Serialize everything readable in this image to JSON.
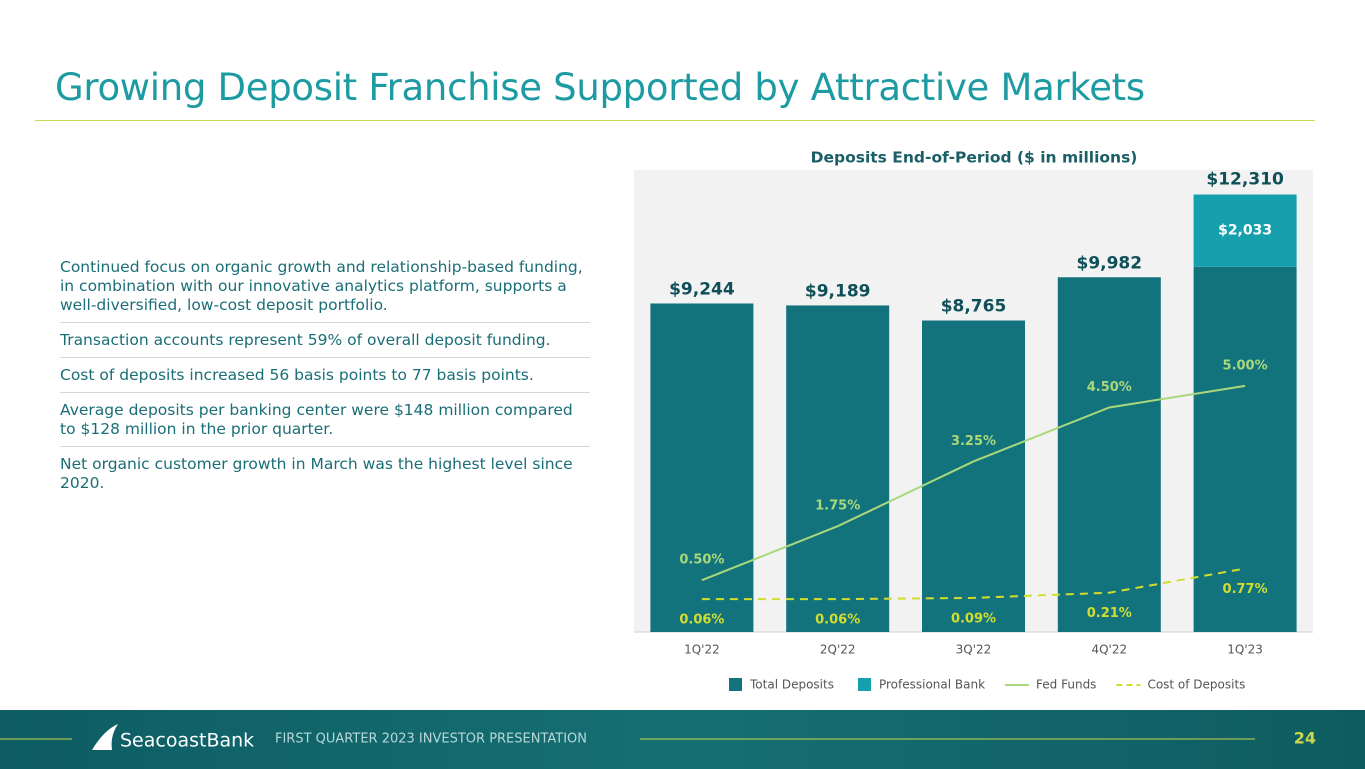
{
  "header": {
    "title": "Growing Deposit Franchise Supported by Attractive Markets"
  },
  "bullets": [
    "Continued focus on organic growth and relationship-based funding, in combination with our innovative analytics platform, supports a well-diversified, low-cost deposit portfolio.",
    "Transaction accounts represent 59% of overall deposit funding.",
    "Cost of deposits increased 56 basis points to 77 basis points.",
    "Average deposits per banking center were $148 million compared to $128 million in the prior quarter.",
    "Net organic customer growth in March was the highest level since 2020."
  ],
  "chart_data": {
    "type": "bar_line",
    "title": "Deposits End-of-Period ($ in millions)",
    "categories": [
      "1Q'22",
      "2Q'22",
      "3Q'22",
      "4Q'22",
      "1Q'23"
    ],
    "ylim": [
      0,
      13000
    ],
    "y2lim": [
      -0.7,
      10
    ],
    "series": [
      {
        "name": "Total Deposits",
        "type": "bar",
        "color": "#13737d",
        "values": [
          9244,
          9189,
          8765,
          9982,
          10277
        ],
        "value_labels": [
          "$9,244",
          "$9,189",
          "$8,765",
          "$9,982",
          null
        ]
      },
      {
        "name": "Professional Bank",
        "type": "bar",
        "color": "#16a0ad",
        "values": [
          null,
          null,
          null,
          null,
          2033
        ],
        "value_labels": [
          null,
          null,
          null,
          null,
          "$2,033"
        ]
      },
      {
        "name": "Fed Funds",
        "type": "line",
        "axis": "y2",
        "color": "#a9d87c",
        "values": [
          0.5,
          1.75,
          3.25,
          4.5,
          5.0
        ],
        "value_labels": [
          "0.50%",
          "1.75%",
          "3.25%",
          "4.50%",
          "5.00%"
        ]
      },
      {
        "name": "Cost of Deposits",
        "type": "line",
        "axis": "y2",
        "dashed": true,
        "color": "#d3de2c",
        "values": [
          0.06,
          0.06,
          0.09,
          0.21,
          0.77
        ],
        "value_labels": [
          "0.06%",
          "0.06%",
          "0.09%",
          "0.21%",
          "0.77%"
        ]
      }
    ],
    "stack_totals": [
      null,
      null,
      null,
      null,
      12310
    ],
    "stack_total_labels": [
      null,
      null,
      null,
      null,
      "$12,310"
    ]
  },
  "footer": {
    "brand": "SeacoastBank",
    "subtitle": "FIRST QUARTER 2023 INVESTOR PRESENTATION",
    "page": "24"
  }
}
